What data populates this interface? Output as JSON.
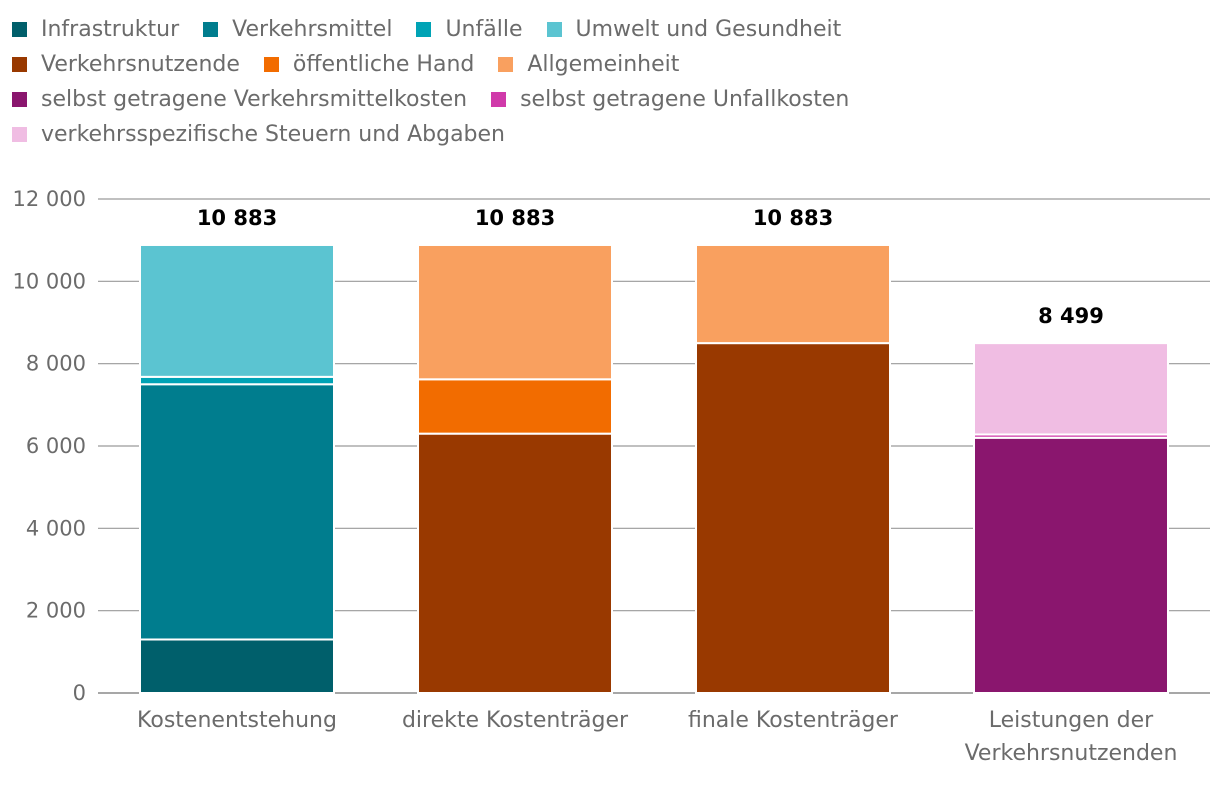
{
  "chart_data": {
    "type": "bar",
    "stacked": true,
    "categories": [
      [
        "Kostenentstehung"
      ],
      [
        "direkte Kostenträger"
      ],
      [
        "finale Kostenträger"
      ],
      [
        "Leistungen der",
        "Verkehrsnutzenden"
      ]
    ],
    "yticks": [
      "0",
      "2 000",
      "4 000",
      "6 000",
      "8 000",
      "10 000",
      "12 000"
    ],
    "ylim": [
      0,
      12000
    ],
    "totals": [
      "10 883",
      "10 883",
      "10 883",
      "8 499"
    ],
    "series": [
      {
        "name": "Infrastruktur",
        "color": "#005f6b",
        "values": [
          1300,
          0,
          0,
          0
        ]
      },
      {
        "name": "Verkehrsmittel",
        "color": "#007d8e",
        "values": [
          6200,
          0,
          0,
          0
        ]
      },
      {
        "name": "Unfälle",
        "color": "#00a3b5",
        "values": [
          180,
          0,
          0,
          0
        ]
      },
      {
        "name": "Umwelt und Gesundheit",
        "color": "#5bc4d1",
        "values": [
          3203,
          0,
          0,
          0
        ]
      },
      {
        "name": "Verkehrsnutzende",
        "color": "#993900",
        "values": [
          0,
          6300,
          8499,
          0
        ]
      },
      {
        "name": "öffentliche Hand",
        "color": "#f26c00",
        "values": [
          0,
          1320,
          0,
          0
        ]
      },
      {
        "name": "Allgemeinheit",
        "color": "#f9a05f",
        "values": [
          0,
          3263,
          2384,
          0
        ]
      },
      {
        "name": "selbst getragene Verkehrsmittelkosten",
        "color": "#8a166e",
        "values": [
          0,
          0,
          0,
          6200
        ]
      },
      {
        "name": "selbst getragene Unfallkosten",
        "color": "#d03aaa",
        "values": [
          0,
          0,
          0,
          80
        ]
      },
      {
        "name": "verkehrsspezifische Steuern und Abgaben",
        "color": "#f0bde3",
        "values": [
          0,
          0,
          0,
          2219
        ]
      }
    ],
    "legend_rows": [
      [
        0,
        1,
        2,
        3
      ],
      [
        4,
        5,
        6
      ],
      [
        7,
        8
      ],
      [
        9
      ]
    ],
    "legend_position": "top-left",
    "grid": true
  }
}
